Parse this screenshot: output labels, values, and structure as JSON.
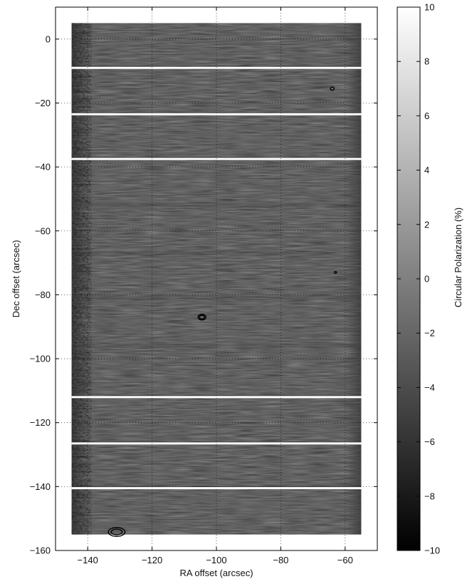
{
  "chart_data": {
    "type": "heatmap",
    "title": "",
    "xlabel": "RA offset (arcsec)",
    "ylabel": "Dec offset (arcsec)",
    "xlim": [
      -150,
      -50
    ],
    "ylim": [
      -160,
      10
    ],
    "xticks": [
      -140,
      -120,
      -100,
      -80,
      -60
    ],
    "yticks": [
      0,
      -20,
      -40,
      -60,
      -80,
      -100,
      -120,
      -140,
      -160
    ],
    "grid": true,
    "image_extent": {
      "x": [
        -145,
        -55
      ],
      "y": [
        -155,
        5
      ]
    },
    "value_range": [
      -10,
      10
    ],
    "background_value": 0,
    "colormap": "gray",
    "blank_strips_dec": [
      -9,
      -23.5,
      -37.5,
      -112,
      -126.5,
      -140.5
    ],
    "noisy_strips_dec": [
      -52,
      -67,
      -81,
      -96
    ],
    "contours": [
      {
        "x": -104.5,
        "y": -87,
        "rx": 1.2,
        "ry": 0.9,
        "rings": 2
      },
      {
        "x": -64,
        "y": -15.5,
        "rx": 0.6,
        "ry": 0.5,
        "rings": 1
      },
      {
        "x": -63,
        "y": -73,
        "rx": 0.35,
        "ry": 0.3,
        "rings": 1
      },
      {
        "x": -131,
        "y": -154.2,
        "rx": 2.6,
        "ry": 1.4,
        "rings": 2
      }
    ],
    "colorbar": {
      "label": "Circular Polarization (%)",
      "ticks": [
        10,
        8,
        6,
        4,
        2,
        0,
        -2,
        -4,
        -6,
        -8,
        -10
      ]
    }
  }
}
